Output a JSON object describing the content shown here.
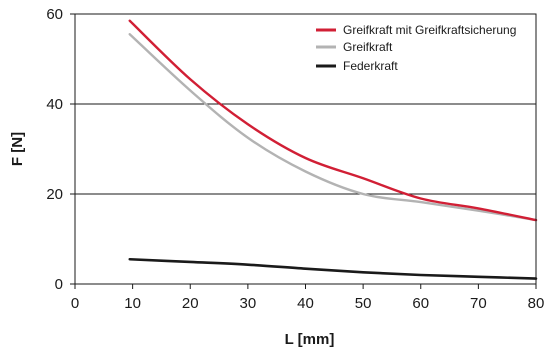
{
  "chart_data": {
    "type": "line",
    "xlabel": "L [mm]",
    "ylabel": "F [N]",
    "xlim": [
      0,
      80
    ],
    "ylim": [
      0,
      60
    ],
    "x_ticks": [
      0,
      10,
      20,
      30,
      40,
      50,
      60,
      70,
      80
    ],
    "y_ticks": [
      0,
      20,
      40,
      60
    ],
    "grid": "horizontal",
    "legend_position": "top-right",
    "series": [
      {
        "name": "Greifkraft mit Greifkraftsicherung",
        "color": "#d11f35",
        "x": [
          9.5,
          20,
          30,
          40,
          50,
          60,
          70,
          80
        ],
        "y": [
          58.5,
          45.5,
          35.5,
          28,
          23.5,
          19,
          16.8,
          14.2
        ]
      },
      {
        "name": "Greifkraft",
        "color": "#b3b3b3",
        "x": [
          9.5,
          20,
          30,
          40,
          50,
          60,
          70,
          80
        ],
        "y": [
          55.5,
          43,
          32.5,
          25,
          20,
          18.2,
          16.3,
          14.2
        ]
      },
      {
        "name": "Federkraft",
        "color": "#1a1a1a",
        "x": [
          9.5,
          20,
          30,
          40,
          50,
          60,
          70,
          80
        ],
        "y": [
          5.5,
          4.9,
          4.3,
          3.4,
          2.6,
          2.0,
          1.6,
          1.2
        ]
      }
    ]
  }
}
